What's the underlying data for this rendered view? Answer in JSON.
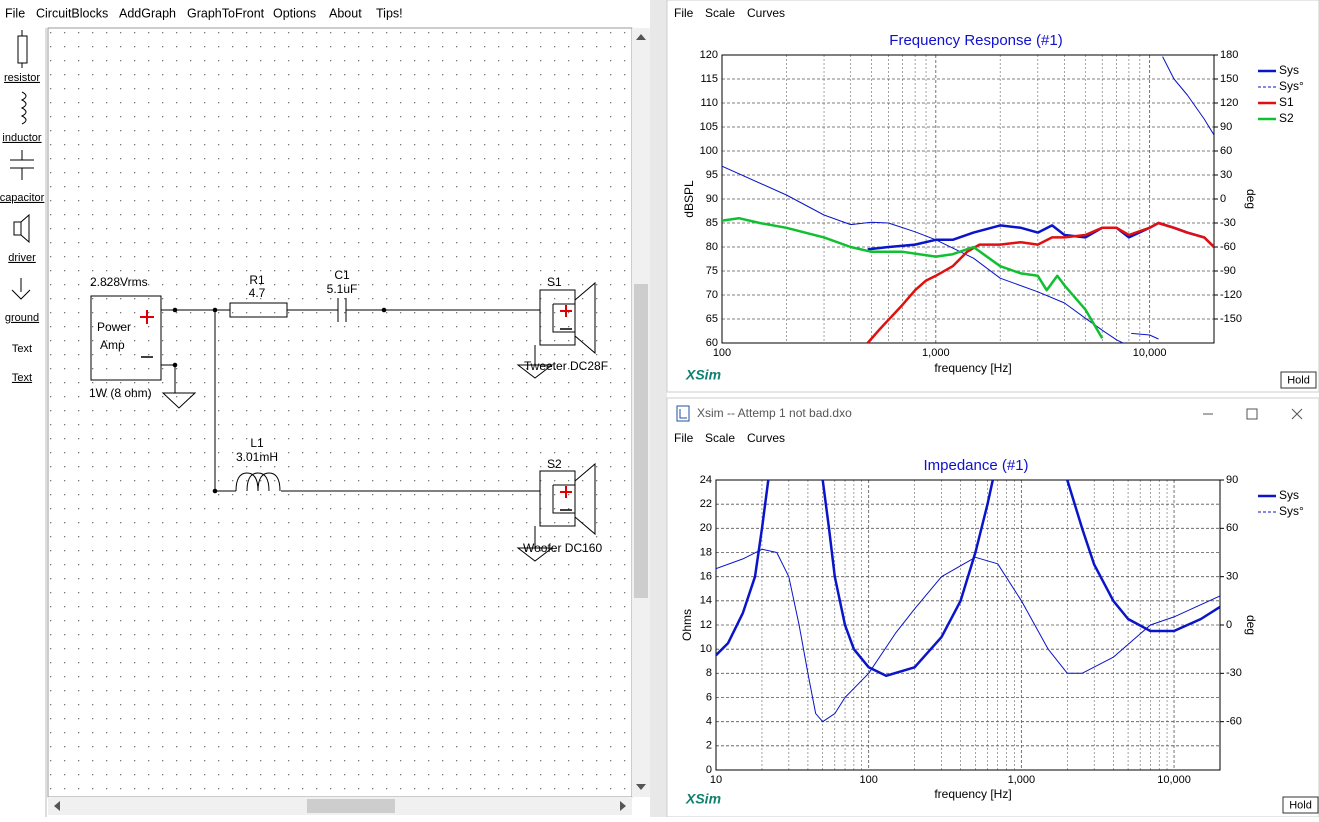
{
  "menu": [
    "File",
    "CircuitBlocks",
    "AddGraph",
    "GraphToFront",
    "Options",
    "About",
    "Tips!"
  ],
  "palette": [
    "resistor",
    "inductor",
    "capacitor",
    "driver",
    "ground",
    "Text",
    "Text"
  ],
  "schematic": {
    "source_voltage": "2.828Vrms",
    "source_line1": "Power",
    "source_line2": "Amp",
    "source_note": "1W (8 ohm)",
    "r1_name": "R1",
    "r1_value": "4.7",
    "c1_name": "C1",
    "c1_value": "5.1uF",
    "l1_name": "L1",
    "l1_value": "3.01mH",
    "s1_name": "S1",
    "s1_label": "Tweeter DC28F",
    "s2_name": "S2",
    "s2_label": "Woofer DC160"
  },
  "graph_windows": [
    {
      "menu": [
        "File",
        "Scale",
        "Curves"
      ],
      "logo": "XSim",
      "button": "Hold"
    },
    {
      "title": "Xsim -- Attemp 1 not bad.dxo",
      "menu": [
        "File",
        "Scale",
        "Curves"
      ],
      "logo": "XSim",
      "button": "Hold"
    }
  ],
  "chart_data": [
    {
      "type": "line",
      "title": "Frequency Response (#1)",
      "xlabel": "frequency [Hz]",
      "ylabel": "dBSPL",
      "y2label": "deg",
      "log_x": true,
      "grid": true,
      "legend": "right",
      "xlim": [
        100,
        20000
      ],
      "xticks": [
        100,
        {
          "value": 1000,
          "label": "1,000"
        },
        {
          "value": 10000,
          "label": "10,000"
        }
      ],
      "ylim": [
        60,
        120
      ],
      "yticks": [
        60,
        65,
        70,
        75,
        80,
        85,
        90,
        95,
        100,
        105,
        110,
        115,
        120
      ],
      "y2lim": [
        -180,
        180
      ],
      "y2ticks": [
        -150,
        -120,
        -90,
        -60,
        -30,
        0,
        30,
        60,
        90,
        120,
        150,
        180
      ],
      "series": [
        {
          "name": "Sys",
          "color": "#0a14c8",
          "width": 2.5,
          "x": [
            480,
            600,
            800,
            1000,
            1200,
            1500,
            2000,
            2500,
            3000,
            3500,
            4000,
            5000,
            6000,
            7000,
            8000,
            10000,
            11000,
            13000,
            15000,
            18000,
            20000
          ],
          "values": [
            79.5,
            80,
            80.5,
            81.5,
            81.5,
            83,
            84.5,
            84,
            83,
            84.5,
            82.5,
            82,
            84,
            84,
            82,
            84,
            85,
            84,
            83,
            82,
            80
          ]
        },
        {
          "name": "Sys°",
          "color": "#0a14c8",
          "width": 1,
          "axis": "y2",
          "dashed": true,
          "x": [
            100,
            200,
            300,
            400,
            500,
            600,
            800,
            1000,
            1500,
            2000,
            3000,
            4000,
            5000,
            6000,
            7000,
            7500,
            7800,
            8200,
            10000,
            11000,
            11200,
            11500,
            13000,
            15000,
            18000,
            20000
          ],
          "values": [
            41,
            5,
            -20,
            -32,
            -29,
            -30,
            -41,
            -51,
            -74,
            -99,
            -116,
            -130,
            -149,
            -164,
            -176,
            -180,
            null,
            -168,
            -170,
            -175,
            null,
            178,
            150,
            130,
            100,
            80
          ]
        },
        {
          "name": "S1",
          "color": "#e01010",
          "width": 2.5,
          "x": [
            480,
            550,
            700,
            800,
            900,
            1000,
            1200,
            1400,
            1600,
            2000,
            2500,
            3000,
            3500,
            4000,
            5000,
            6000,
            7000,
            8000,
            10000,
            11000,
            13000,
            15000,
            18000,
            20000
          ],
          "values": [
            60,
            63,
            68,
            71,
            73,
            74,
            76,
            79,
            80.5,
            80.5,
            81,
            80.5,
            82,
            82,
            82.5,
            84,
            84,
            82.5,
            84,
            85,
            84,
            83,
            82,
            80
          ]
        },
        {
          "name": "S2",
          "color": "#10c030",
          "width": 2.5,
          "x": [
            100,
            120,
            150,
            200,
            300,
            400,
            500,
            700,
            1000,
            1200,
            1500,
            2000,
            2500,
            3000,
            3300,
            3700,
            4000,
            5000,
            6000
          ],
          "values": [
            85.5,
            86,
            85,
            84,
            82,
            80,
            79,
            79,
            78,
            78.5,
            80,
            76,
            74.5,
            74,
            71,
            74,
            72,
            67,
            61
          ]
        }
      ]
    },
    {
      "type": "line",
      "title": "Impedance (#1)",
      "xlabel": "frequency [Hz]",
      "ylabel": "Ohms",
      "y2label": "deg",
      "log_x": true,
      "grid": true,
      "legend": "right",
      "xlim": [
        10,
        20000
      ],
      "xticks": [
        10,
        100,
        {
          "value": 1000,
          "label": "1,000"
        },
        {
          "value": 10000,
          "label": "10,000"
        }
      ],
      "ylim": [
        0,
        24
      ],
      "yticks": [
        0,
        2,
        4,
        6,
        8,
        10,
        12,
        14,
        16,
        18,
        20,
        22,
        24
      ],
      "y2lim": [
        -90,
        90
      ],
      "y2ticks": [
        -60,
        -30,
        0,
        30,
        60,
        90
      ],
      "series": [
        {
          "name": "Sys",
          "color": "#0a14c8",
          "width": 2.5,
          "x": [
            10,
            12,
            15,
            18,
            20,
            22,
            30,
            50,
            55,
            60,
            70,
            80,
            100,
            130,
            200,
            300,
            400,
            500,
            600,
            650,
            1000,
            2000,
            2500,
            3000,
            4000,
            5000,
            7000,
            10000,
            15000,
            20000
          ],
          "values": [
            9.5,
            10.5,
            13,
            16,
            20,
            24,
            null,
            24,
            20,
            16,
            12,
            10,
            8.5,
            7.8,
            8.5,
            11,
            14,
            18,
            22,
            24,
            null,
            24,
            20,
            17,
            14,
            12.5,
            11.5,
            11.5,
            12.5,
            13.5
          ]
        },
        {
          "name": "Sys°",
          "color": "#0a14c8",
          "width": 1,
          "axis": "y2",
          "dashed": true,
          "x": [
            10,
            15,
            20,
            25,
            30,
            35,
            40,
            45,
            50,
            60,
            70,
            100,
            150,
            200,
            300,
            500,
            700,
            1000,
            1500,
            2000,
            2500,
            4000,
            7000,
            10000,
            20000
          ],
          "values": [
            35,
            41,
            47,
            45,
            30,
            0,
            -30,
            -55,
            -60,
            -55,
            -45,
            -30,
            -5,
            10,
            30,
            42,
            38,
            15,
            -15,
            -30,
            -30,
            -20,
            0,
            5,
            18
          ]
        }
      ]
    }
  ]
}
